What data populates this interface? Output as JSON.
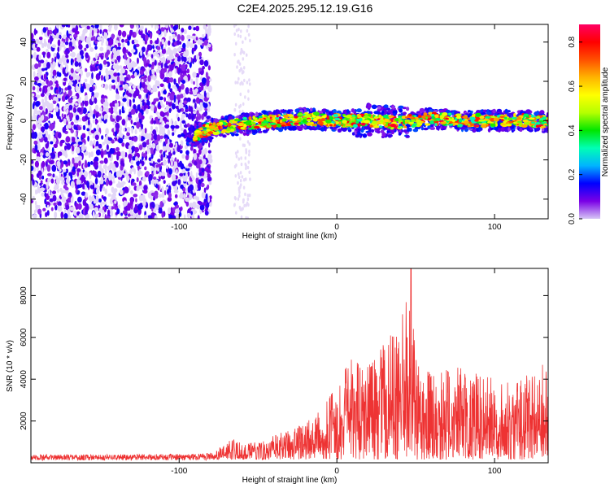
{
  "figure": {
    "title": "C2E4.2025.295.12.19.G16"
  },
  "chart_data": [
    {
      "type": "heatmap",
      "title": "",
      "xlabel": "Height of straight line (km)",
      "ylabel": "Frequency (Hz)",
      "xlim": [
        -194,
        134
      ],
      "ylim": [
        -50,
        49
      ],
      "xticks": [
        -100,
        0,
        100
      ],
      "yticks": [
        -40,
        -20,
        0,
        20,
        40
      ],
      "colorbar": {
        "label": "Normalized spectral amplitude",
        "range": [
          0,
          0.88
        ],
        "ticks": [
          0.0,
          0.2,
          0.4,
          0.6,
          0.8
        ],
        "colormap": [
          "#d6c6f5",
          "#7a00e6",
          "#0000ff",
          "#00b4ff",
          "#00ffb4",
          "#00e600",
          "#b4ff00",
          "#ffff00",
          "#ffb400",
          "#ff5000",
          "#ff0000",
          "#ff0064"
        ]
      },
      "regions": [
        {
          "x_range": [
            -194,
            -80
          ],
          "y_range": [
            -50,
            49
          ],
          "amplitude": [
            0.05,
            0.15
          ],
          "description_visible": false
        },
        {
          "x_range": [
            -65,
            -55
          ],
          "y_range": [
            -50,
            49
          ],
          "amplitude": [
            0.0,
            0.05
          ]
        },
        {
          "x_range": [
            -95,
            134
          ],
          "y_center": 0,
          "y_halfwidth": 3,
          "amplitude": [
            0.3,
            0.85
          ]
        }
      ],
      "ridge": {
        "x": [
          -95,
          -80,
          -60,
          -40,
          -20,
          0,
          20,
          40,
          60,
          80,
          100,
          120,
          134
        ],
        "y": [
          -9,
          -4,
          -2,
          0,
          1,
          0,
          0,
          -1,
          1,
          0,
          0,
          0,
          -1
        ]
      }
    },
    {
      "type": "line",
      "title": "",
      "xlabel": "Height of straight line (km)",
      "ylabel": "SNR (10 * v/v)",
      "xlim": [
        -194,
        134
      ],
      "ylim": [
        0,
        9300
      ],
      "xticks": [
        -100,
        0,
        100
      ],
      "yticks": [
        2000,
        4000,
        6000,
        8000
      ],
      "color": "#ee3333",
      "envelope": {
        "x": [
          -194,
          -150,
          -100,
          -80,
          -70,
          -65,
          -60,
          -50,
          -40,
          -30,
          -20,
          -10,
          0,
          10,
          20,
          30,
          40,
          45,
          50,
          55,
          60,
          70,
          80,
          90,
          100,
          110,
          120,
          130,
          134
        ],
        "max": [
          400,
          400,
          420,
          500,
          900,
          1300,
          900,
          1000,
          1300,
          1600,
          2000,
          2500,
          3700,
          5200,
          4600,
          6000,
          6300,
          9300,
          5500,
          4700,
          4300,
          4500,
          4700,
          4200,
          4100,
          3900,
          4300,
          4800,
          4200
        ]
      },
      "peak": {
        "x": 47,
        "y": 9300
      }
    }
  ]
}
